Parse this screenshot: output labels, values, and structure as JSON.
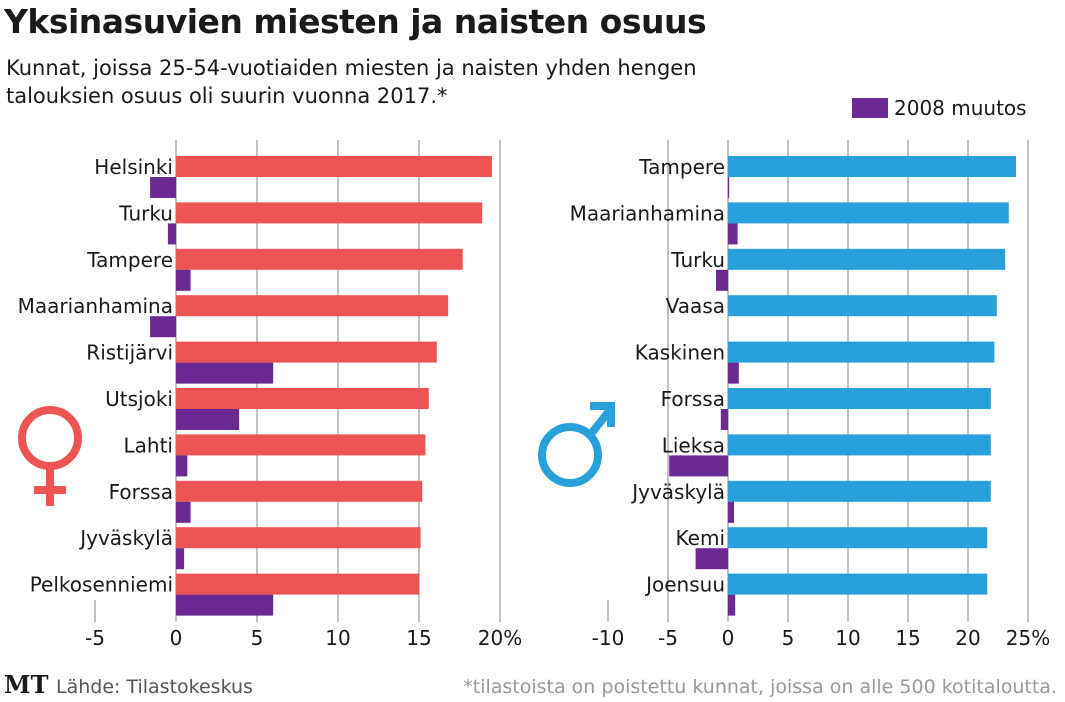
{
  "title": "Yksinasuvien miesten ja naisten osuus",
  "subtitle": "Kunnat, joissa 25-54-vuotiaiden miesten ja naisten yhden hengen talouksien osuus oli suurin vuonna 2017.*",
  "legend": {
    "label": "2008 muutos",
    "color": "#6b2a92"
  },
  "footer": {
    "logo": "MT",
    "source": "Lähde: Tilastokeskus",
    "footnote": "*tilastoista on poistettu kunnat, joissa on alle 500 kotitaloutta."
  },
  "chart_data": [
    {
      "type": "bar",
      "orientation": "horizontal",
      "group": "naiset",
      "icon": "female-symbol-icon",
      "color": "#ef5455",
      "change_color": "#6b2a92",
      "categories": [
        "Helsinki",
        "Turku",
        "Tampere",
        "Maarianhamina",
        "Ristijärvi",
        "Utsjoki",
        "Lahti",
        "Forssa",
        "Jyväskylä",
        "Pelkosenniemi"
      ],
      "series": [
        {
          "values": [
            19.5,
            18.9,
            17.7,
            16.8,
            16.1,
            15.6,
            15.4,
            15.2,
            15.1,
            15.0
          ]
        },
        {
          "name": "2008 muutos",
          "values": [
            -1.6,
            -0.5,
            0.9,
            -1.6,
            6.0,
            3.9,
            0.7,
            0.9,
            0.5,
            6.0
          ]
        }
      ],
      "xlim": [
        -5,
        20
      ],
      "ticks": [
        "-5",
        "0",
        "5",
        "10",
        "15",
        "20%"
      ],
      "tick_values": [
        -5,
        0,
        5,
        10,
        15,
        20
      ],
      "grid": true
    },
    {
      "type": "bar",
      "orientation": "horizontal",
      "group": "miehet",
      "icon": "male-symbol-icon",
      "color": "#27a0dc",
      "change_color": "#6b2a92",
      "categories": [
        "Tampere",
        "Maarianhamina",
        "Turku",
        "Vaasa",
        "Kaskinen",
        "Forssa",
        "Lieksa",
        "Jyväskylä",
        "Kemi",
        "Joensuu"
      ],
      "series": [
        {
          "values": [
            24.0,
            23.4,
            23.1,
            22.4,
            22.2,
            21.9,
            21.9,
            21.9,
            21.6,
            21.6
          ]
        },
        {
          "name": "2008 muutos",
          "values": [
            0.1,
            0.8,
            -1.0,
            0.0,
            0.9,
            -0.6,
            -4.9,
            0.5,
            -2.7,
            0.6
          ]
        }
      ],
      "xlim": [
        -10,
        25
      ],
      "ticks": [
        "-10",
        "-5",
        "0",
        "5",
        "10",
        "15",
        "20",
        "25%"
      ],
      "tick_values": [
        -10,
        -5,
        0,
        5,
        10,
        15,
        20,
        25
      ],
      "grid": true
    }
  ]
}
